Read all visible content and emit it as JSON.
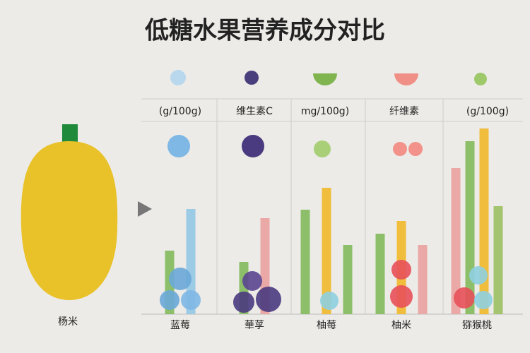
{
  "chart_data": {
    "type": "bar",
    "title": "低糖水果营养成分对比",
    "column_headers": [
      "(g/100g)",
      "维生素C",
      "mg/100g)",
      "纤维素",
      "(g/100g)"
    ],
    "side_label": "杨米",
    "categories": [
      "蓝莓",
      "華莩",
      "柚莓",
      "柚米",
      "猕猴桃"
    ],
    "series": [
      {
        "values": [
          90,
          74,
          148,
          114,
          207
        ],
        "colors": [
          "#8dbf6a",
          "#8dbf6a",
          "#8dbf6a",
          "#8dbf6a",
          "#eaa8a6"
        ]
      },
      {
        "values": [
          149,
          136,
          179,
          132,
          245
        ],
        "colors": [
          "#9ccbe6",
          "#eaa8a6",
          "#f0bd3c",
          "#f0bd3c",
          "#8dbf6a"
        ]
      },
      {
        "values": [
          null,
          null,
          98,
          98,
          263
        ],
        "colors": [
          null,
          null,
          "#8dbf6a",
          "#eaa8a6",
          "#f0bd3c"
        ]
      },
      {
        "values": [
          null,
          null,
          null,
          null,
          153
        ],
        "colors": [
          null,
          null,
          null,
          null,
          "#a4c46f"
        ]
      }
    ],
    "ylim": [
      0,
      270
    ]
  }
}
